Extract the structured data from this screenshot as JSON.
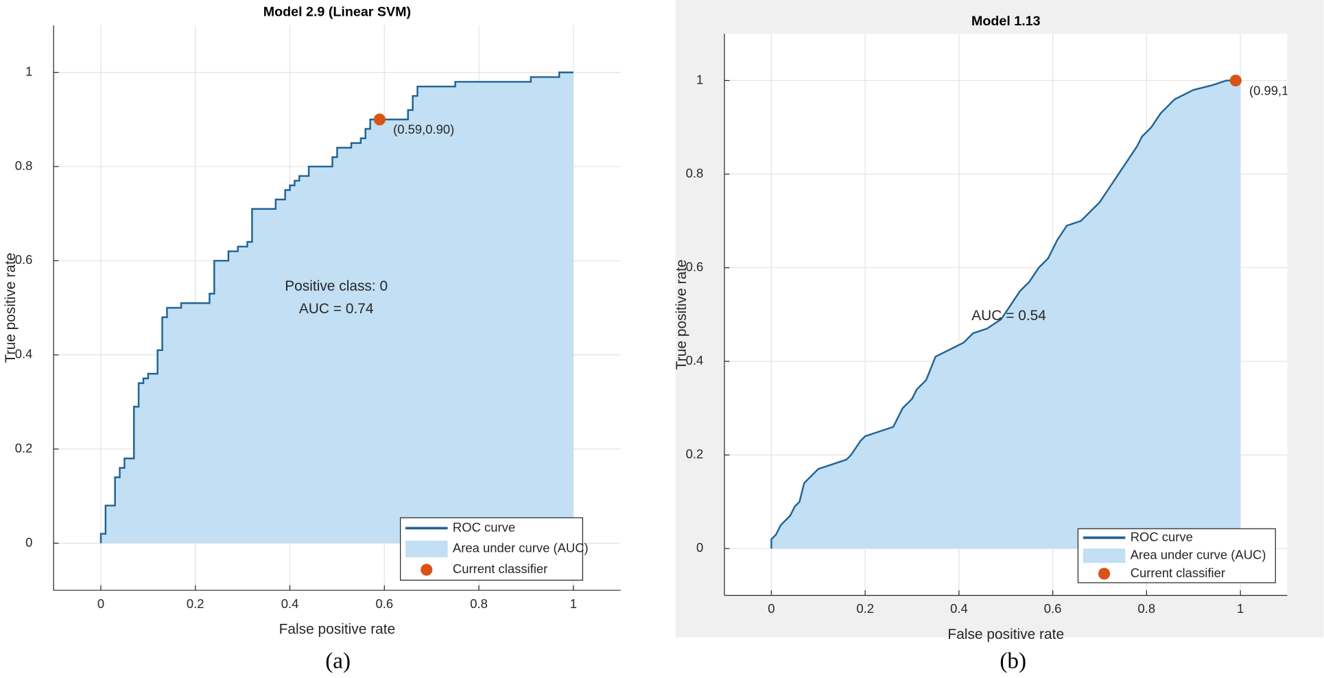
{
  "chart_data": [
    {
      "type": "roc",
      "title": "Model 2.9 (Linear SVM)",
      "xlabel": "False positive rate",
      "ylabel": "True positive rate",
      "xlim": [
        -0.1,
        1.1
      ],
      "ylim": [
        -0.1,
        1.1
      ],
      "xticks": [
        0,
        0.2,
        0.4,
        0.6,
        0.8,
        1
      ],
      "yticks": [
        0,
        0.2,
        0.4,
        0.6,
        0.8,
        1
      ],
      "grid": true,
      "roc": {
        "name": "ROC curve",
        "color": "#1f6396",
        "x": [
          0,
          0,
          0.01,
          0.01,
          0.03,
          0.03,
          0.04,
          0.04,
          0.05,
          0.05,
          0.07,
          0.07,
          0.08,
          0.08,
          0.09,
          0.09,
          0.1,
          0.1,
          0.12,
          0.12,
          0.13,
          0.13,
          0.14,
          0.14,
          0.17,
          0.17,
          0.23,
          0.23,
          0.24,
          0.24,
          0.27,
          0.27,
          0.29,
          0.29,
          0.31,
          0.31,
          0.32,
          0.32,
          0.37,
          0.37,
          0.39,
          0.39,
          0.4,
          0.4,
          0.41,
          0.41,
          0.42,
          0.42,
          0.44,
          0.44,
          0.49,
          0.49,
          0.5,
          0.5,
          0.53,
          0.53,
          0.55,
          0.55,
          0.56,
          0.56,
          0.57,
          0.57,
          0.65,
          0.65,
          0.66,
          0.66,
          0.67,
          0.67,
          0.75,
          0.75,
          0.91,
          0.91,
          0.97,
          0.97,
          1
        ],
        "values": [
          0,
          0.02,
          0.02,
          0.08,
          0.08,
          0.14,
          0.14,
          0.16,
          0.16,
          0.18,
          0.18,
          0.29,
          0.29,
          0.34,
          0.34,
          0.35,
          0.35,
          0.36,
          0.36,
          0.41,
          0.41,
          0.48,
          0.48,
          0.5,
          0.5,
          0.51,
          0.51,
          0.53,
          0.53,
          0.6,
          0.6,
          0.62,
          0.62,
          0.63,
          0.63,
          0.64,
          0.64,
          0.71,
          0.71,
          0.73,
          0.73,
          0.75,
          0.75,
          0.76,
          0.76,
          0.77,
          0.77,
          0.78,
          0.78,
          0.8,
          0.8,
          0.82,
          0.82,
          0.84,
          0.84,
          0.85,
          0.85,
          0.86,
          0.86,
          0.88,
          0.88,
          0.9,
          0.9,
          0.92,
          0.92,
          0.95,
          0.95,
          0.97,
          0.97,
          0.98,
          0.98,
          0.99,
          0.99,
          1,
          1
        ]
      },
      "area": {
        "name": "Area under curve (AUC)",
        "color": "#c2dff3"
      },
      "classifier": {
        "name": "Current classifier",
        "color": "#d95319",
        "x": 0.59,
        "y": 0.9,
        "label": "(0.59,0.90)"
      },
      "annotations": [
        "Positive class: 0",
        "AUC = 0.74"
      ],
      "caption": "(a)"
    },
    {
      "type": "roc",
      "title": "Model 1.13",
      "xlabel": "False positive rate",
      "ylabel": "True positive rate",
      "xlim": [
        -0.1,
        1.1
      ],
      "ylim": [
        -0.1,
        1.1
      ],
      "xticks": [
        0,
        0.2,
        0.4,
        0.6,
        0.8,
        1
      ],
      "yticks": [
        0,
        0.2,
        0.4,
        0.6,
        0.8,
        1
      ],
      "grid": true,
      "roc": {
        "name": "ROC curve",
        "color": "#1f6396",
        "x": [
          0,
          0,
          0.01,
          0.02,
          0.04,
          0.05,
          0.06,
          0.07,
          0.08,
          0.1,
          0.13,
          0.16,
          0.17,
          0.19,
          0.2,
          0.23,
          0.26,
          0.28,
          0.3,
          0.31,
          0.33,
          0.35,
          0.37,
          0.39,
          0.41,
          0.43,
          0.46,
          0.49,
          0.51,
          0.53,
          0.55,
          0.57,
          0.59,
          0.61,
          0.63,
          0.66,
          0.68,
          0.7,
          0.72,
          0.74,
          0.76,
          0.78,
          0.79,
          0.81,
          0.83,
          0.86,
          0.9,
          0.94,
          0.97,
          1
        ],
        "values": [
          0,
          0.02,
          0.03,
          0.05,
          0.07,
          0.09,
          0.1,
          0.14,
          0.15,
          0.17,
          0.18,
          0.19,
          0.2,
          0.23,
          0.24,
          0.25,
          0.26,
          0.3,
          0.32,
          0.34,
          0.36,
          0.41,
          0.42,
          0.43,
          0.44,
          0.46,
          0.47,
          0.49,
          0.52,
          0.55,
          0.57,
          0.6,
          0.62,
          0.66,
          0.69,
          0.7,
          0.72,
          0.74,
          0.77,
          0.8,
          0.83,
          0.86,
          0.88,
          0.9,
          0.93,
          0.96,
          0.98,
          0.99,
          1,
          1
        ]
      },
      "area": {
        "name": "Area under curve (AUC)",
        "color": "#c2dff3"
      },
      "classifier": {
        "name": "Current classifier",
        "color": "#d95319",
        "x": 0.99,
        "y": 1,
        "label": "(0.99,1"
      },
      "annotations": [
        "AUC = 0.54"
      ],
      "caption": "(b)"
    }
  ]
}
